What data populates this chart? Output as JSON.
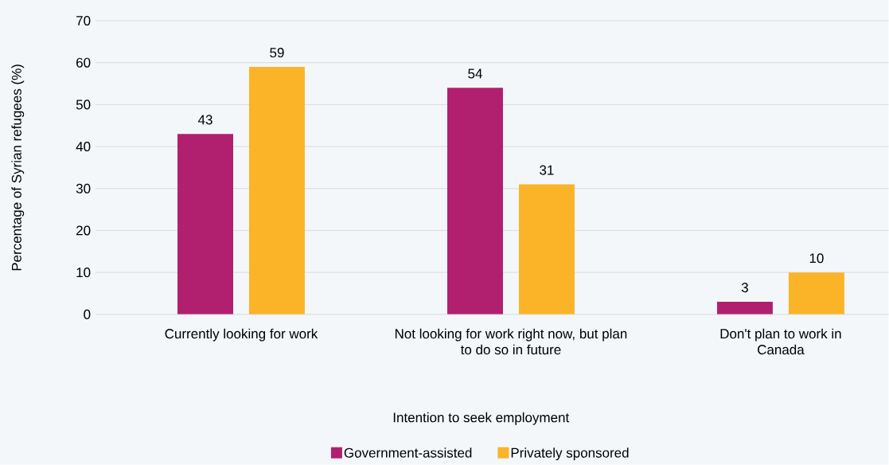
{
  "chart_data": {
    "type": "bar",
    "xlabel": "Intention to seek employment",
    "ylabel": "Percentage of Syrian refugees (%)",
    "categories": [
      "Currently looking for work",
      "Not looking for work right now, but plan to do so in future",
      "Don't plan to work in Canada"
    ],
    "series": [
      {
        "name": "Government-assisted",
        "color": "#b0206e",
        "values": [
          43,
          54,
          3
        ]
      },
      {
        "name": "Privately sponsored",
        "color": "#fbb427",
        "values": [
          59,
          31,
          10
        ]
      }
    ],
    "ylim": [
      0,
      70
    ],
    "yticks": [
      0,
      10,
      20,
      30,
      40,
      50,
      60,
      70
    ],
    "grid": "y",
    "legend": "bottom",
    "data_labels": true
  }
}
